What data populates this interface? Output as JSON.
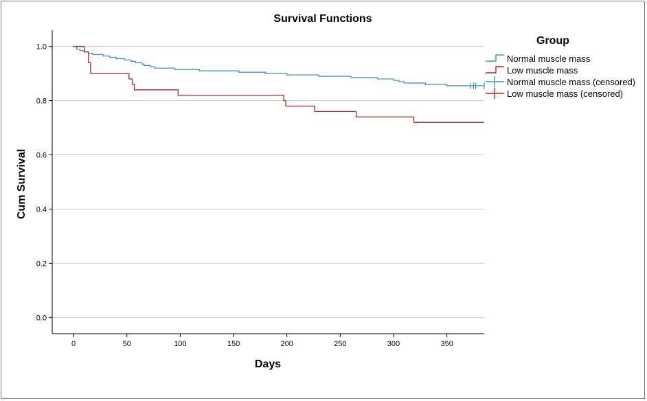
{
  "chart_data": {
    "type": "line",
    "subtype": "step",
    "title": "Survival Functions",
    "xlabel": "Days",
    "ylabel": "Cum Survival",
    "xlim": [
      -20,
      385
    ],
    "ylim": [
      -0.06,
      1.06
    ],
    "xticks": [
      "0",
      "50",
      "100",
      "150",
      "200",
      "250",
      "300",
      "350"
    ],
    "yticks": [
      "0.0",
      "0.2",
      "0.4",
      "0.6",
      "0.8",
      "1.0"
    ],
    "grid": "horizontal",
    "legend": {
      "title": "Group",
      "position": "right",
      "entries": [
        "Normal muscle mass",
        "Low muscle mass",
        "Normal muscle mass (censored)",
        "Low muscle mass (censored)"
      ]
    },
    "series": [
      {
        "name": "Normal muscle mass",
        "color": "#3a93c9",
        "x": [
          0,
          3,
          6,
          10,
          14,
          18,
          28,
          34,
          40,
          48,
          54,
          58,
          64,
          66,
          72,
          76,
          85,
          95,
          108,
          118,
          155,
          180,
          200,
          230,
          260,
          285,
          300,
          305,
          310,
          330,
          350,
          370,
          385
        ],
        "y": [
          1.0,
          0.99,
          0.985,
          0.98,
          0.975,
          0.97,
          0.965,
          0.96,
          0.955,
          0.95,
          0.945,
          0.94,
          0.935,
          0.93,
          0.925,
          0.92,
          0.92,
          0.915,
          0.915,
          0.91,
          0.905,
          0.9,
          0.895,
          0.89,
          0.885,
          0.88,
          0.875,
          0.87,
          0.865,
          0.86,
          0.855,
          0.855,
          0.855
        ],
        "censored_x": [
          372,
          375,
          377,
          385
        ],
        "censored_y": [
          0.855,
          0.855,
          0.855,
          0.855
        ]
      },
      {
        "name": "Low muscle mass",
        "color": "#b22222",
        "x": [
          0,
          10,
          14,
          16,
          52,
          55,
          57,
          98,
          197,
          199,
          226,
          265,
          319,
          385
        ],
        "y": [
          1.0,
          0.98,
          0.94,
          0.9,
          0.88,
          0.86,
          0.84,
          0.82,
          0.8,
          0.78,
          0.76,
          0.74,
          0.72,
          0.72
        ]
      }
    ]
  }
}
